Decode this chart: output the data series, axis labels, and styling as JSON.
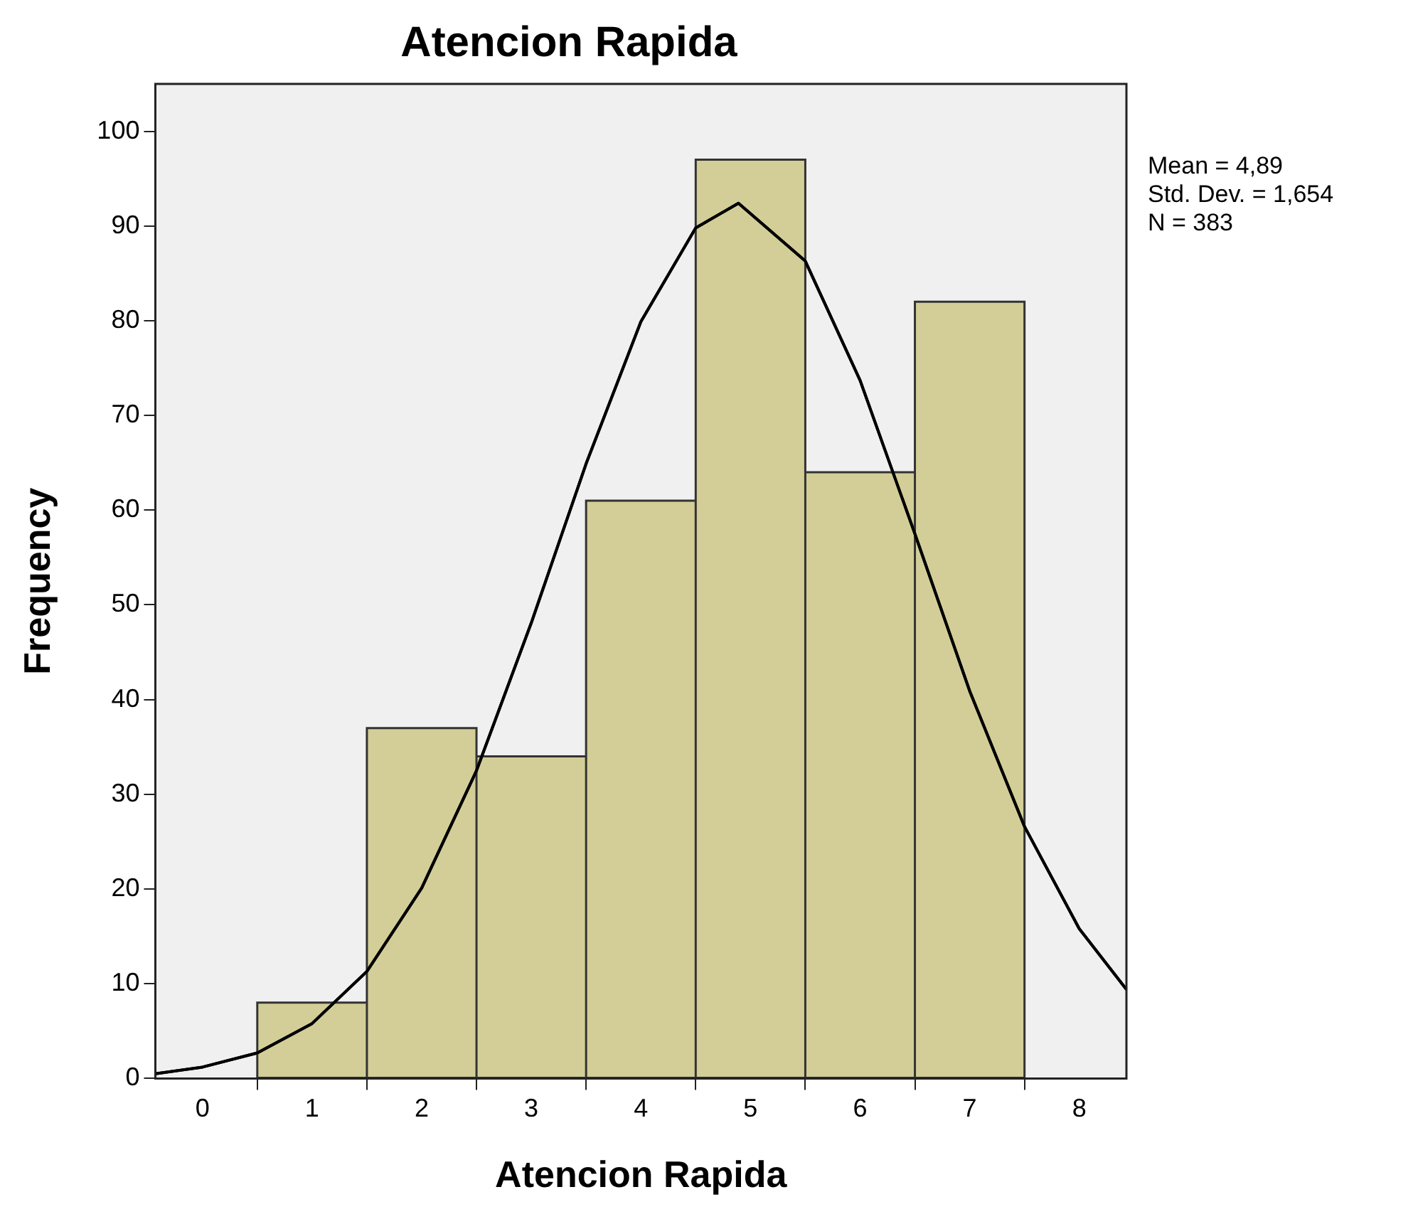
{
  "chart_data": {
    "type": "histogram",
    "title": "Atencion Rapida",
    "xlabel": "Atencion Rapida",
    "ylabel": "Frequency",
    "bins": [
      0.5,
      1.5,
      2.5,
      3.5,
      4.5,
      5.5,
      6.5,
      7.5
    ],
    "values": [
      8,
      37,
      34,
      61,
      97,
      64,
      82
    ],
    "color": "#d3ce97",
    "series": [
      {
        "type": "line",
        "color": "#000000",
        "x": [
          -0.43,
          0,
          0.5,
          1,
          1.5,
          2,
          2.5,
          3,
          3.5,
          4,
          4.5,
          4.89,
          5.5,
          6,
          6.5,
          7,
          7.5,
          8,
          8.43
        ],
        "values": [
          0.5,
          1.2,
          2.7,
          5.8,
          11.3,
          20.1,
          32.5,
          48.1,
          64.9,
          79.9,
          89.8,
          92.4,
          86.3,
          73.7,
          57.5,
          40.9,
          26.6,
          15.8,
          9.4
        ]
      }
    ],
    "xlim": [
      -0.43,
      8.43
    ],
    "xticks": [
      0,
      1,
      2,
      3,
      4,
      5,
      6,
      7,
      8
    ],
    "ylim": [
      0,
      105
    ],
    "yticks": [
      0,
      10,
      20,
      30,
      40,
      50,
      60,
      70,
      80,
      90,
      100
    ],
    "grid": false,
    "legend": false,
    "marker": "none",
    "line_style": "solid",
    "annotations": [
      "Mean = 4,89",
      "Std. Dev. = 1,654",
      "N = 383"
    ]
  }
}
